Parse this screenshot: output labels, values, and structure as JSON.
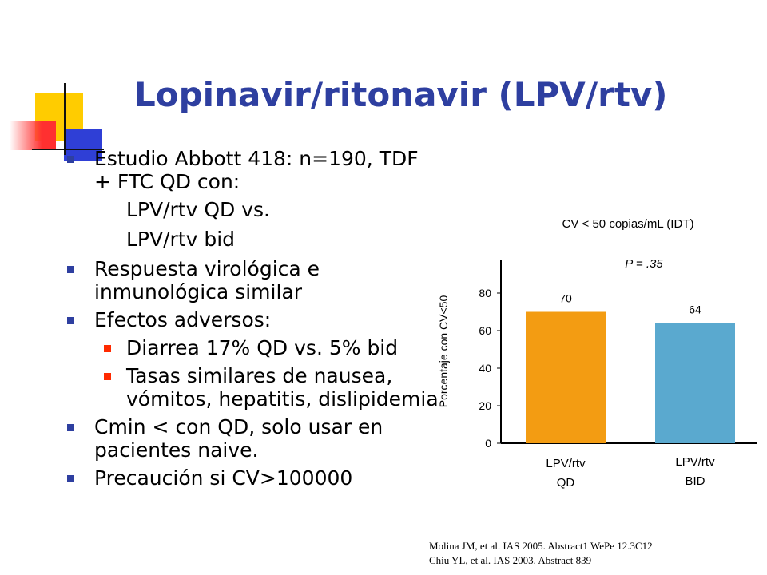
{
  "slide": {
    "title": "Lopinavir/ritonavir (LPV/rtv)",
    "bullets": [
      {
        "level": 1,
        "text": "Estudio Abbott 418: n=190, TDF + FTC QD con:"
      },
      {
        "level": 0,
        "text": "LPV/rtv QD vs."
      },
      {
        "level": 0,
        "text": "LPV/rtv bid"
      },
      {
        "level": 1,
        "text": "Respuesta virológica e inmunológica similar"
      },
      {
        "level": 1,
        "text": "Efectos adversos:"
      },
      {
        "level": 2,
        "text": "Diarrea 17% QD vs. 5% bid"
      },
      {
        "level": 2,
        "text": "Tasas similares de nausea, vómitos, hepatitis, dislipidemia"
      },
      {
        "level": 1,
        "text": "Cmin < con QD, solo usar en pacientes naive."
      },
      {
        "level": 1,
        "text": "Precaución si CV>100000"
      }
    ],
    "references": [
      "Molina JM, et al. IAS 2005. Abstract1 WePe 12.3C12",
      "Chiu YL, et al. IAS 2003. Abstract 839"
    ],
    "colors": {
      "title": "#2e3fa0",
      "bullet_l1": "#2e3fa0",
      "bullet_l2": "#ff2a00"
    }
  },
  "chart_data": {
    "type": "bar",
    "title": "CV < 50 copias/mL (IDT)",
    "ylabel": "Porcentaje con CV<50",
    "xlabel": "",
    "categories": [
      [
        "LPV/rtv",
        "QD"
      ],
      [
        "LPV/rtv",
        "BID"
      ]
    ],
    "values": [
      70,
      64
    ],
    "value_labels": [
      "70",
      "64"
    ],
    "colors": [
      "#f39c12",
      "#5aa9cf"
    ],
    "ylim": [
      0,
      100
    ],
    "yticks": [
      0,
      20,
      40,
      60,
      80
    ],
    "annotation": "P = .35",
    "grid": false,
    "legend": "none"
  }
}
